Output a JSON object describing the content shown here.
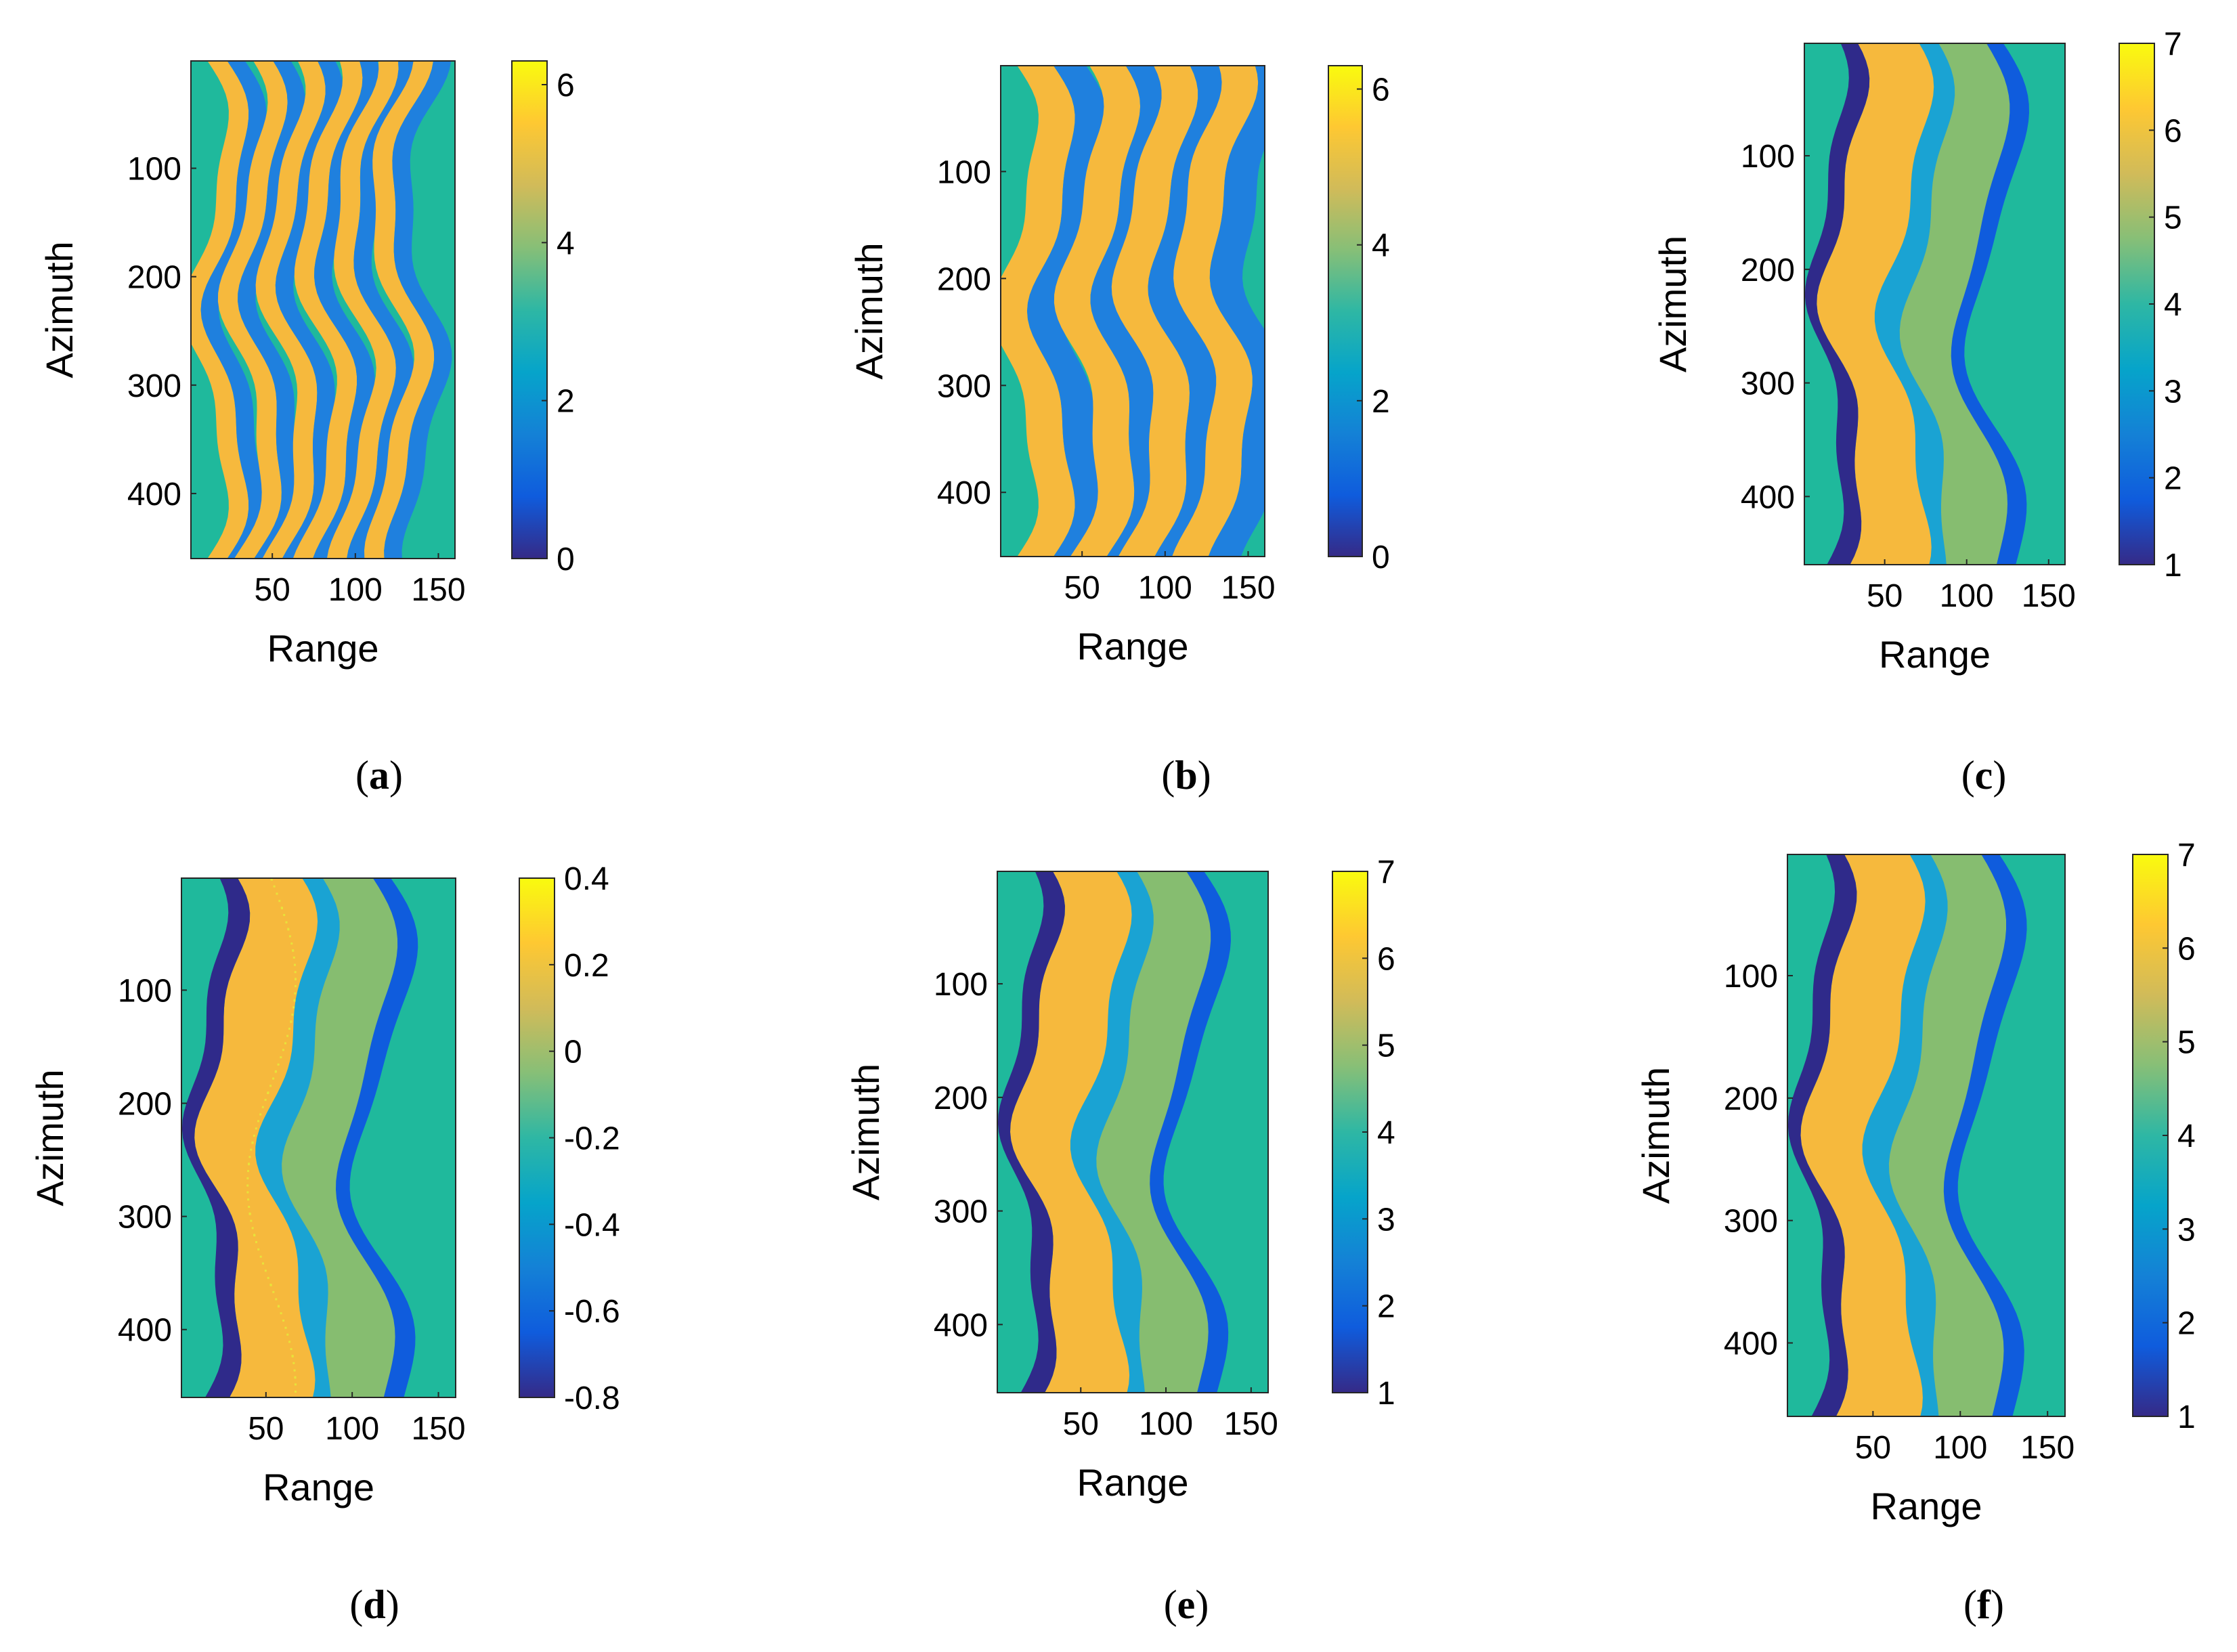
{
  "figure": {
    "panel_letters": [
      "a",
      "b",
      "c",
      "d",
      "e",
      "f"
    ]
  },
  "colors": {
    "parula": [
      "#352a87",
      "#0f5cdd",
      "#1481d6",
      "#06a4ca",
      "#2eb7a4",
      "#87bf77",
      "#d1bb59",
      "#fec832",
      "#f9fb0e"
    ]
  },
  "chart_data": [
    {
      "type": "heatmap",
      "panel": "a",
      "xlabel": "Range",
      "ylabel": "Azimuth",
      "xlim": [
        1,
        160
      ],
      "ylim": [
        1,
        460
      ],
      "y_reversed": true,
      "xticks": [
        50,
        100,
        150
      ],
      "yticks": [
        100,
        200,
        300,
        400
      ],
      "colorbar": {
        "min": 0,
        "max": 6.3,
        "ticks": [
          0,
          2,
          4,
          6
        ],
        "tick_labels": [
          "0",
          "2",
          "4",
          "6"
        ]
      },
      "pattern": "wrapped"
    },
    {
      "type": "heatmap",
      "panel": "b",
      "xlabel": "Range",
      "ylabel": "Azimuth",
      "xlim": [
        1,
        160
      ],
      "ylim": [
        1,
        460
      ],
      "y_reversed": true,
      "xticks": [
        50,
        100,
        150
      ],
      "yticks": [
        100,
        200,
        300,
        400
      ],
      "colorbar": {
        "min": 0,
        "max": 6.3,
        "ticks": [
          0,
          2,
          4,
          6
        ],
        "tick_labels": [
          "0",
          "2",
          "4",
          "6"
        ]
      },
      "pattern": "wrapped-smooth"
    },
    {
      "type": "heatmap",
      "panel": "c",
      "xlabel": "Range",
      "ylabel": "Azimuth",
      "xlim": [
        1,
        160
      ],
      "ylim": [
        1,
        460
      ],
      "y_reversed": true,
      "xticks": [
        50,
        100,
        150
      ],
      "yticks": [
        100,
        200,
        300,
        400
      ],
      "colorbar": {
        "min": 1,
        "max": 7,
        "ticks": [
          1,
          2,
          3,
          4,
          5,
          6,
          7
        ],
        "tick_labels": [
          "1",
          "2",
          "3",
          "4",
          "5",
          "6",
          "7"
        ]
      },
      "pattern": "bands"
    },
    {
      "type": "heatmap",
      "panel": "d",
      "xlabel": "Range",
      "ylabel": "Azimuth",
      "xlim": [
        1,
        160
      ],
      "ylim": [
        1,
        460
      ],
      "y_reversed": true,
      "xticks": [
        50,
        100,
        150
      ],
      "yticks": [
        100,
        200,
        300,
        400
      ],
      "colorbar": {
        "min": -0.8,
        "max": 0.4,
        "ticks": [
          -0.8,
          -0.6,
          -0.4,
          -0.2,
          0,
          0.2,
          0.4
        ],
        "tick_labels": [
          "-0.8",
          "-0.6",
          "-0.4",
          "-0.2",
          "0",
          "0.2",
          "0.4"
        ]
      },
      "pattern": "bands-noisy"
    },
    {
      "type": "heatmap",
      "panel": "e",
      "xlabel": "Range",
      "ylabel": "Azimuth",
      "xlim": [
        1,
        160
      ],
      "ylim": [
        1,
        460
      ],
      "y_reversed": true,
      "xticks": [
        50,
        100,
        150
      ],
      "yticks": [
        100,
        200,
        300,
        400
      ],
      "colorbar": {
        "min": 1,
        "max": 7,
        "ticks": [
          1,
          2,
          3,
          4,
          5,
          6,
          7
        ],
        "tick_labels": [
          "1",
          "2",
          "3",
          "4",
          "5",
          "6",
          "7"
        ]
      },
      "pattern": "bands"
    },
    {
      "type": "heatmap",
      "panel": "f",
      "xlabel": "Range",
      "ylabel": "Azimuth",
      "xlim": [
        1,
        160
      ],
      "ylim": [
        1,
        460
      ],
      "y_reversed": true,
      "xticks": [
        50,
        100,
        150
      ],
      "yticks": [
        100,
        200,
        300,
        400
      ],
      "colorbar": {
        "min": 1,
        "max": 7,
        "ticks": [
          1,
          2,
          3,
          4,
          5,
          6,
          7
        ],
        "tick_labels": [
          "1",
          "2",
          "3",
          "4",
          "5",
          "6",
          "7"
        ]
      },
      "pattern": "bands"
    }
  ]
}
